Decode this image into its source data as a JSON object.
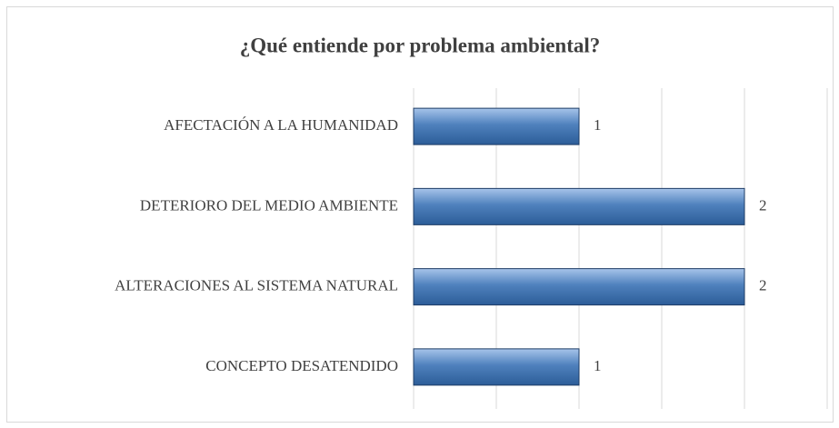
{
  "chart_data": {
    "type": "bar",
    "orientation": "horizontal",
    "title": "¿Qué entiende por problema ambiental?",
    "categories": [
      "AFECTACIÓN A LA HUMANIDAD",
      "DETERIORO DEL MEDIO AMBIENTE",
      "ALTERACIONES AL SISTEMA NATURAL",
      "CONCEPTO DESATENDIDO"
    ],
    "values": [
      1,
      2,
      2,
      1
    ],
    "color": "#4f81bd",
    "xlim": [
      0,
      2.5
    ],
    "xticks": [
      0,
      0.5,
      1,
      1.5,
      2,
      2.5
    ],
    "grid": true
  }
}
